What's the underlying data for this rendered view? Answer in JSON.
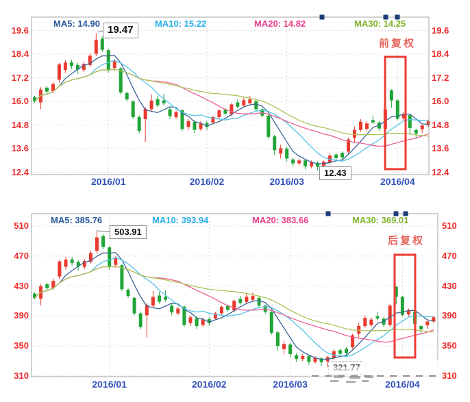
{
  "page": {
    "background": "#ffffff"
  },
  "style": {
    "candle_up": "#e93a2f",
    "candle_down": "#20a537",
    "ma5": "#3b6596",
    "ma10": "#55c2e8",
    "ma20": "#ee5f95",
    "ma30": "#aac455",
    "y_axis_label": "#ee2a2a",
    "x_axis_label": "#3452bb",
    "annotation_box": "#ee3b31",
    "annotation_text": "#e7635b",
    "handle_blue": "#1c3a78",
    "plot_border": "#a6a6a6",
    "grid": "#dcdcdc"
  },
  "chart_data": [
    {
      "type": "candlestick",
      "title": "",
      "labels": {
        "annotation": "前复权",
        "peak": "19.47",
        "low": "12.43"
      },
      "legend_position": "top",
      "legend": [
        {
          "label": "MA5: 14.90",
          "color": "#27589b"
        },
        {
          "label": "MA10: 15.22",
          "color": "#29aee6"
        },
        {
          "label": "MA20: 14.82",
          "color": "#e73f87"
        },
        {
          "label": "MA30: 14.25",
          "color": "#7eb32a"
        }
      ],
      "y_ticks": [
        "19.6",
        "18.4",
        "17.2",
        "16.0",
        "14.8",
        "13.6",
        "12.4"
      ],
      "ylim": [
        12.28,
        20.28
      ],
      "x_ticks": [
        "2016/01",
        "2016/02",
        "2016/03",
        "2016/04"
      ],
      "x_tick_candle_indices": [
        12,
        28,
        41,
        59
      ],
      "grid": true,
      "ohlc_format": [
        "open",
        "high",
        "low",
        "close"
      ],
      "ohlc": [
        [
          16.22,
          16.28,
          15.92,
          16.0
        ],
        [
          15.95,
          16.72,
          15.62,
          16.6
        ],
        [
          16.7,
          16.78,
          16.35,
          16.5
        ],
        [
          16.52,
          17.0,
          16.4,
          16.88
        ],
        [
          17.1,
          17.95,
          16.95,
          17.88
        ],
        [
          17.6,
          18.1,
          17.45,
          17.97
        ],
        [
          17.98,
          18.12,
          17.65,
          17.8
        ],
        [
          17.85,
          17.95,
          17.4,
          17.62
        ],
        [
          17.6,
          18.0,
          17.48,
          17.9
        ],
        [
          17.85,
          18.45,
          17.75,
          18.32
        ],
        [
          18.42,
          19.47,
          18.3,
          19.12
        ],
        [
          19.18,
          19.3,
          18.5,
          18.62
        ],
        [
          18.6,
          18.66,
          17.45,
          17.58
        ],
        [
          17.7,
          18.15,
          17.55,
          18.03
        ],
        [
          17.68,
          17.75,
          16.35,
          16.45
        ],
        [
          16.42,
          16.5,
          16.0,
          16.1
        ],
        [
          16.0,
          16.05,
          15.1,
          15.2
        ],
        [
          15.2,
          15.3,
          14.38,
          14.5
        ],
        [
          15.1,
          15.72,
          13.95,
          15.62
        ],
        [
          15.6,
          16.35,
          15.5,
          16.05
        ],
        [
          16.12,
          16.3,
          15.7,
          15.8
        ],
        [
          16.05,
          16.4,
          15.8,
          15.9
        ],
        [
          15.6,
          15.75,
          15.1,
          15.25
        ],
        [
          15.2,
          15.55,
          15.1,
          15.45
        ],
        [
          15.55,
          15.6,
          14.5,
          14.6
        ],
        [
          14.7,
          15.1,
          14.55,
          15.0
        ],
        [
          14.95,
          15.05,
          14.4,
          14.55
        ],
        [
          14.6,
          15.0,
          14.5,
          14.88
        ],
        [
          14.9,
          15.0,
          14.55,
          14.7
        ],
        [
          14.93,
          15.28,
          14.85,
          15.2
        ],
        [
          15.2,
          15.6,
          15.1,
          15.54
        ],
        [
          15.58,
          15.65,
          15.28,
          15.38
        ],
        [
          15.35,
          15.92,
          15.25,
          15.85
        ],
        [
          15.95,
          16.1,
          15.65,
          15.73
        ],
        [
          15.79,
          16.22,
          15.7,
          16.06
        ],
        [
          15.9,
          16.28,
          15.82,
          16.1
        ],
        [
          16.0,
          16.08,
          15.5,
          15.6
        ],
        [
          15.6,
          15.65,
          15.18,
          15.28
        ],
        [
          15.28,
          15.32,
          14.1,
          14.2
        ],
        [
          14.22,
          14.3,
          13.28,
          13.52
        ],
        [
          13.35,
          13.8,
          13.1,
          13.62
        ],
        [
          13.6,
          13.7,
          12.95,
          13.1
        ],
        [
          13.05,
          13.15,
          12.7,
          12.85
        ],
        [
          12.85,
          13.1,
          12.75,
          13.0
        ],
        [
          13.0,
          13.05,
          12.55,
          12.7
        ],
        [
          12.7,
          13.0,
          12.6,
          12.9
        ],
        [
          12.88,
          12.95,
          12.5,
          12.68
        ],
        [
          12.73,
          13.0,
          12.43,
          12.94
        ],
        [
          12.9,
          13.35,
          12.8,
          13.25
        ],
        [
          13.3,
          13.4,
          13.0,
          13.12
        ],
        [
          13.38,
          13.45,
          13.05,
          13.15
        ],
        [
          13.45,
          14.15,
          13.35,
          14.07
        ],
        [
          14.15,
          14.72,
          13.9,
          14.55
        ],
        [
          14.55,
          15.1,
          14.45,
          14.97
        ],
        [
          14.6,
          15.0,
          14.5,
          14.88
        ],
        [
          15.05,
          15.28,
          14.85,
          14.93
        ],
        [
          14.93,
          15.0,
          14.5,
          14.62
        ],
        [
          14.6,
          15.7,
          14.5,
          15.6
        ],
        [
          16.56,
          16.62,
          15.66,
          16.05
        ],
        [
          16.05,
          16.1,
          15.05,
          15.12
        ],
        [
          15.14,
          15.45,
          15.05,
          15.36
        ],
        [
          15.3,
          15.35,
          14.3,
          14.65
        ],
        [
          14.55,
          14.62,
          14.1,
          14.37
        ],
        [
          14.58,
          14.8,
          14.4,
          14.78
        ],
        [
          14.78,
          15.05,
          14.7,
          15.0
        ]
      ],
      "moving_average_windows": [
        5,
        10,
        20,
        30
      ],
      "annotation_box_value_range": {
        "top": 18.15,
        "bottom": 12.6
      }
    },
    {
      "type": "candlestick",
      "title": "",
      "labels": {
        "annotation": "后复权",
        "peak": "503.91",
        "low": "321.77"
      },
      "legend_position": "top",
      "legend": [
        {
          "label": "MA5: 385.76",
          "color": "#27589b"
        },
        {
          "label": "MA10: 393.94",
          "color": "#29aee6"
        },
        {
          "label": "MA20: 383.66",
          "color": "#e73f87"
        },
        {
          "label": "MA30: 369.01",
          "color": "#7eb32a"
        }
      ],
      "y_ticks": [
        "510",
        "470",
        "430",
        "390",
        "350",
        "310"
      ],
      "ylim": [
        309,
        526.5
      ],
      "x_ticks": [
        "2016/01",
        "2016/02",
        "2016/03",
        "2016/04"
      ],
      "x_tick_candle_indices": [
        12,
        28,
        41,
        59
      ],
      "grid": true,
      "ohlc_format": [
        "open",
        "high",
        "low",
        "close"
      ],
      "ohlc_basis": "same candles as chart 0 multiplied by scale_factor (same stock, backward-adjusted prices)",
      "scale_factor": 25.885,
      "high_override": {
        "index": 10,
        "value": 503.91
      },
      "low_override": {
        "index": 47,
        "value": 321.77
      },
      "moving_average_windows": [
        5,
        10,
        20,
        30
      ],
      "annotation_box_value_range": {
        "top": 471,
        "bottom": 334
      }
    }
  ]
}
